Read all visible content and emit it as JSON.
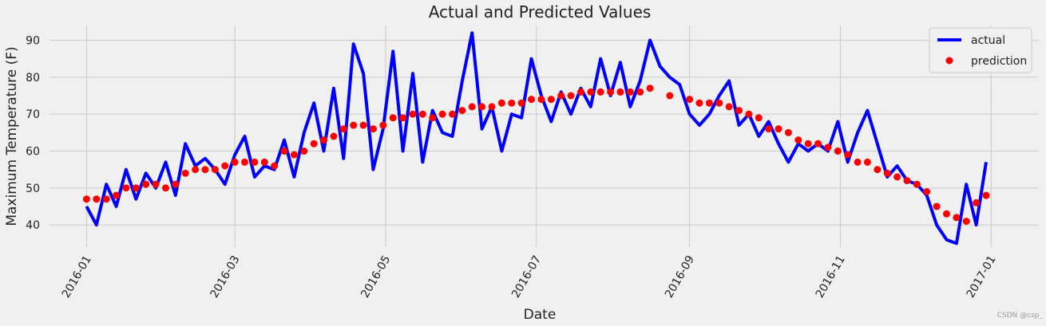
{
  "chart_data": {
    "type": "line",
    "title": "Actual and Predicted Values",
    "xlabel": "Date",
    "ylabel": "Maximum Temperature (F)",
    "watermark": "CSDN @csp_",
    "grid": true,
    "legend": "upper right",
    "xlim": [
      -15,
      385
    ],
    "ylim": [
      34,
      94
    ],
    "xticks": [
      {
        "value": 0,
        "label": "2016-01"
      },
      {
        "value": 60,
        "label": "2016-03"
      },
      {
        "value": 121,
        "label": "2016-05"
      },
      {
        "value": 182,
        "label": "2016-07"
      },
      {
        "value": 244,
        "label": "2016-09"
      },
      {
        "value": 305,
        "label": "2016-11"
      },
      {
        "value": 366,
        "label": "2017-01"
      }
    ],
    "yticks": [
      40,
      50,
      60,
      70,
      80,
      90
    ],
    "x": [
      0,
      4,
      8,
      12,
      16,
      20,
      24,
      28,
      32,
      36,
      40,
      44,
      48,
      52,
      56,
      60,
      64,
      68,
      72,
      76,
      80,
      84,
      88,
      92,
      96,
      100,
      104,
      108,
      112,
      116,
      120,
      124,
      128,
      132,
      136,
      140,
      144,
      148,
      152,
      156,
      160,
      164,
      168,
      172,
      176,
      180,
      184,
      188,
      192,
      196,
      200,
      204,
      208,
      212,
      216,
      220,
      224,
      228,
      232,
      236,
      240,
      244,
      248,
      252,
      256,
      260,
      264,
      268,
      272,
      276,
      280,
      284,
      288,
      292,
      296,
      300,
      304,
      308,
      312,
      316,
      320,
      324,
      328,
      332,
      336,
      340,
      344,
      348,
      352,
      356,
      360,
      364
    ],
    "series": [
      {
        "name": "actual",
        "type": "line",
        "color": "#0000ff",
        "values": [
          45,
          40,
          51,
          45,
          55,
          47,
          54,
          50,
          57,
          48,
          62,
          56,
          58,
          55,
          51,
          59,
          64,
          53,
          56,
          55,
          63,
          53,
          65,
          73,
          60,
          77,
          58,
          89,
          81,
          55,
          66,
          87,
          60,
          81,
          57,
          71,
          65,
          64,
          79,
          92,
          66,
          72,
          60,
          70,
          69,
          85,
          75,
          68,
          76,
          70,
          77,
          72,
          85,
          75,
          84,
          72,
          79,
          90,
          83,
          80,
          78,
          70,
          67,
          70,
          75,
          79,
          67,
          70,
          64,
          68,
          62,
          57,
          62,
          60,
          62,
          60,
          68,
          57,
          65,
          71,
          62,
          53,
          56,
          52,
          51,
          48,
          40,
          36,
          35,
          51,
          40,
          57
        ]
      },
      {
        "name": "prediction",
        "type": "scatter",
        "color": "#ff0000",
        "values": [
          47,
          47,
          47,
          48,
          50,
          50,
          51,
          51,
          50,
          51,
          54,
          55,
          55,
          55,
          56,
          57,
          57,
          57,
          57,
          56,
          60,
          59,
          60,
          62,
          63,
          64,
          66,
          67,
          67,
          66,
          67,
          69,
          69,
          70,
          70,
          69,
          70,
          70,
          71,
          72,
          72,
          72,
          73,
          73,
          73,
          74,
          74,
          74,
          75,
          75,
          76,
          76,
          76,
          76,
          76,
          76,
          76,
          77,
          null,
          75,
          null,
          74,
          73,
          73,
          73,
          72,
          71,
          70,
          69,
          66,
          66,
          65,
          63,
          62,
          62,
          61,
          60,
          59,
          57,
          57,
          55,
          54,
          53,
          52,
          51,
          49,
          45,
          43,
          42,
          41,
          46,
          48
        ]
      }
    ]
  }
}
